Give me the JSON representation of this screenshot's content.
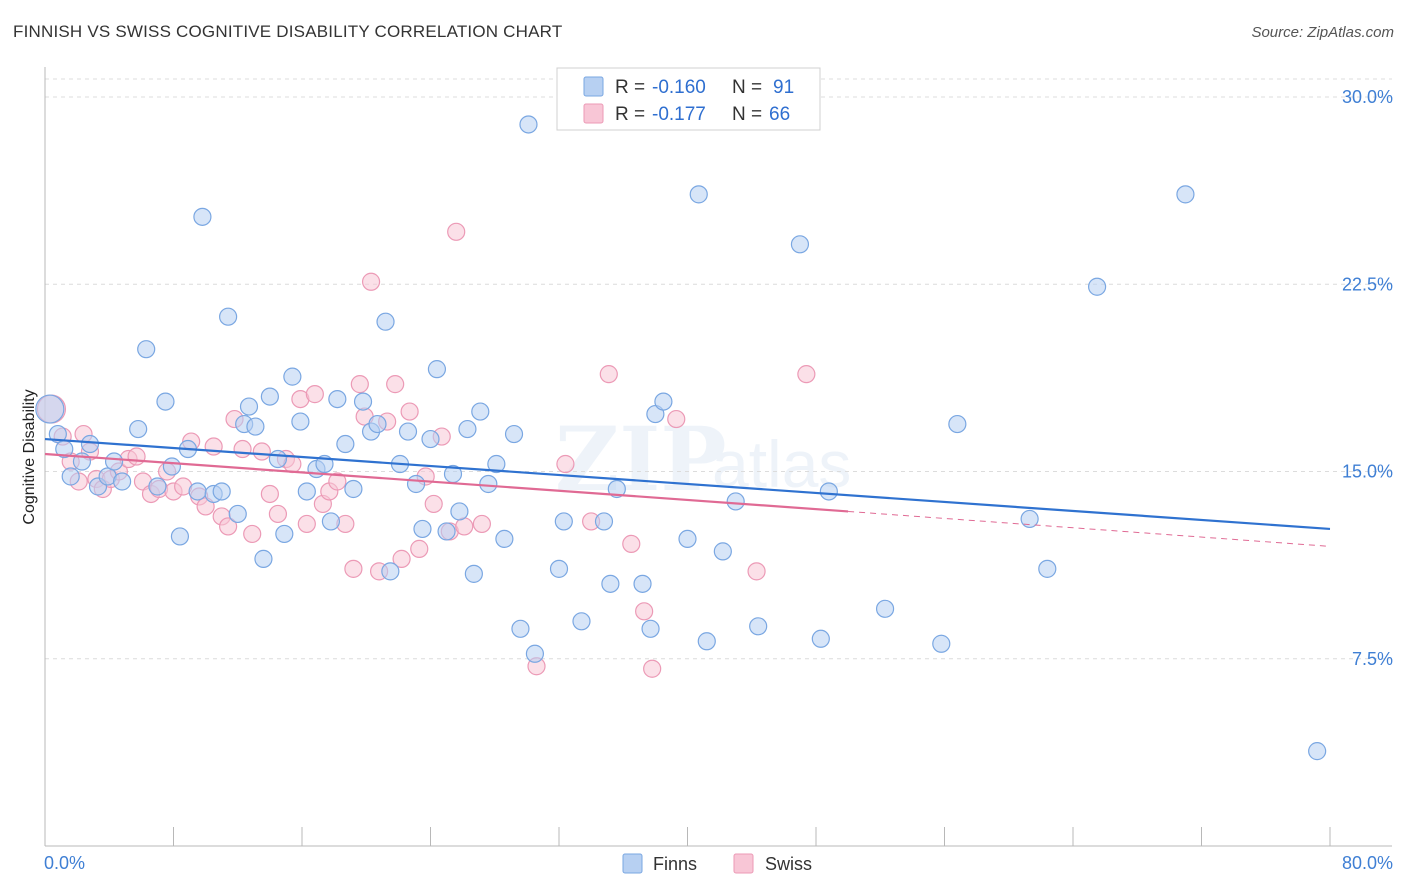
{
  "title": "FINNISH VS SWISS COGNITIVE DISABILITY CORRELATION CHART",
  "source": "Source: ZipAtlas.com",
  "watermark": {
    "zip": "ZIP",
    "atlas": "atlas"
  },
  "legend_top": {
    "r_label": "R =",
    "n_label": "N =",
    "rows": [
      {
        "r": "-0.160",
        "n": "91"
      },
      {
        "r": "-0.177",
        "n": "66"
      }
    ]
  },
  "legend_bottom": [
    "Finns",
    "Swiss"
  ],
  "colors": {
    "finns_fill": "#b7d0f2",
    "finns_stroke": "#7aa7e2",
    "finns_line": "#2f72d0",
    "swiss_fill": "#f8c6d6",
    "swiss_stroke": "#ec9ab6",
    "swiss_line": "#e06a94",
    "tick": "#3f7fd4",
    "grid": "#dcdcdc"
  },
  "chart_data": {
    "type": "scatter",
    "title": "FINNISH VS SWISS COGNITIVE DISABILITY CORRELATION CHART",
    "xlabel": "",
    "ylabel": "Cognitive Disability",
    "xlim": [
      0,
      80
    ],
    "ylim": [
      0,
      32.5
    ],
    "x_tick_labels": [
      "0.0%",
      "80.0%"
    ],
    "y_ticks": [
      7.5,
      15.0,
      22.5,
      30.0
    ],
    "y_tick_labels": [
      "7.5%",
      "15.0%",
      "22.5%",
      "30.0%"
    ],
    "grid": "horizontal dashed",
    "legend_placement": "top-center and bottom",
    "series": [
      {
        "name": "Finns",
        "r": -0.16,
        "n": 91,
        "trend": {
          "x": [
            0,
            80
          ],
          "y": [
            16.3,
            12.7
          ]
        },
        "points": [
          [
            0.3,
            17.5
          ],
          [
            0.8,
            16.5
          ],
          [
            1.2,
            15.9
          ],
          [
            1.6,
            14.8
          ],
          [
            2.3,
            15.4
          ],
          [
            2.8,
            16.1
          ],
          [
            3.3,
            14.4
          ],
          [
            3.9,
            14.8
          ],
          [
            4.3,
            15.4
          ],
          [
            4.8,
            14.6
          ],
          [
            5.8,
            16.7
          ],
          [
            6.3,
            19.9
          ],
          [
            7.0,
            14.4
          ],
          [
            7.5,
            17.8
          ],
          [
            7.9,
            15.2
          ],
          [
            8.4,
            12.4
          ],
          [
            8.9,
            15.9
          ],
          [
            9.5,
            14.2
          ],
          [
            9.8,
            25.2
          ],
          [
            10.5,
            14.1
          ],
          [
            11.0,
            14.2
          ],
          [
            11.4,
            21.2
          ],
          [
            12.0,
            13.3
          ],
          [
            12.4,
            16.9
          ],
          [
            12.7,
            17.6
          ],
          [
            13.1,
            16.8
          ],
          [
            13.6,
            11.5
          ],
          [
            14.0,
            18.0
          ],
          [
            14.5,
            15.5
          ],
          [
            14.9,
            12.5
          ],
          [
            15.4,
            18.8
          ],
          [
            15.9,
            17.0
          ],
          [
            16.3,
            14.2
          ],
          [
            16.9,
            15.1
          ],
          [
            17.4,
            15.3
          ],
          [
            17.8,
            13.0
          ],
          [
            18.2,
            17.9
          ],
          [
            18.7,
            16.1
          ],
          [
            19.2,
            14.3
          ],
          [
            19.8,
            17.8
          ],
          [
            20.3,
            16.6
          ],
          [
            20.7,
            16.9
          ],
          [
            21.2,
            21.0
          ],
          [
            21.5,
            11.0
          ],
          [
            22.1,
            15.3
          ],
          [
            22.6,
            16.6
          ],
          [
            23.1,
            14.5
          ],
          [
            23.5,
            12.7
          ],
          [
            24.0,
            16.3
          ],
          [
            24.4,
            19.1
          ],
          [
            25.0,
            12.6
          ],
          [
            25.4,
            14.9
          ],
          [
            25.8,
            13.4
          ],
          [
            26.3,
            16.7
          ],
          [
            26.7,
            10.9
          ],
          [
            27.1,
            17.4
          ],
          [
            27.6,
            14.5
          ],
          [
            28.1,
            15.3
          ],
          [
            28.6,
            12.3
          ],
          [
            29.2,
            16.5
          ],
          [
            29.6,
            8.7
          ],
          [
            30.1,
            28.9
          ],
          [
            30.5,
            7.7
          ],
          [
            32.0,
            11.1
          ],
          [
            32.3,
            13.0
          ],
          [
            33.4,
            9.0
          ],
          [
            34.8,
            13.0
          ],
          [
            35.2,
            10.5
          ],
          [
            35.6,
            14.3
          ],
          [
            37.2,
            10.5
          ],
          [
            37.7,
            8.7
          ],
          [
            38.0,
            17.3
          ],
          [
            38.5,
            17.8
          ],
          [
            40.0,
            12.3
          ],
          [
            40.7,
            26.1
          ],
          [
            41.2,
            8.2
          ],
          [
            42.2,
            11.8
          ],
          [
            43.0,
            13.8
          ],
          [
            44.4,
            8.8
          ],
          [
            45.2,
            29.7
          ],
          [
            47.0,
            24.1
          ],
          [
            48.3,
            8.3
          ],
          [
            48.8,
            14.2
          ],
          [
            52.3,
            9.5
          ],
          [
            55.8,
            8.1
          ],
          [
            56.8,
            16.9
          ],
          [
            61.3,
            13.1
          ],
          [
            62.4,
            11.1
          ],
          [
            65.5,
            22.4
          ],
          [
            71.0,
            26.1
          ],
          [
            79.2,
            3.8
          ]
        ]
      },
      {
        "name": "Swiss",
        "r": -0.177,
        "n": 66,
        "trend": {
          "x": [
            0,
            50
          ],
          "y": [
            15.7,
            13.4
          ]
        },
        "trend_extension": {
          "x": [
            50,
            80
          ],
          "y": [
            13.4,
            12.0
          ]
        },
        "points": [
          [
            0.4,
            17.5
          ],
          [
            1.1,
            16.4
          ],
          [
            1.6,
            15.4
          ],
          [
            2.1,
            14.6
          ],
          [
            2.4,
            16.5
          ],
          [
            2.8,
            15.8
          ],
          [
            3.2,
            14.7
          ],
          [
            3.6,
            14.3
          ],
          [
            4.1,
            14.7
          ],
          [
            4.6,
            15.0
          ],
          [
            5.2,
            15.5
          ],
          [
            5.7,
            15.6
          ],
          [
            6.1,
            14.6
          ],
          [
            6.6,
            14.1
          ],
          [
            7.1,
            14.3
          ],
          [
            7.6,
            15.0
          ],
          [
            8.0,
            14.2
          ],
          [
            8.6,
            14.4
          ],
          [
            9.1,
            16.2
          ],
          [
            9.6,
            14.0
          ],
          [
            10.0,
            13.6
          ],
          [
            10.5,
            16.0
          ],
          [
            11.0,
            13.2
          ],
          [
            11.4,
            12.8
          ],
          [
            11.8,
            17.1
          ],
          [
            12.3,
            15.9
          ],
          [
            12.9,
            12.5
          ],
          [
            13.5,
            15.8
          ],
          [
            14.0,
            14.1
          ],
          [
            14.5,
            13.3
          ],
          [
            15.0,
            15.5
          ],
          [
            15.4,
            15.3
          ],
          [
            15.9,
            17.9
          ],
          [
            16.3,
            12.9
          ],
          [
            16.8,
            18.1
          ],
          [
            17.3,
            13.7
          ],
          [
            17.7,
            14.2
          ],
          [
            18.2,
            14.6
          ],
          [
            18.7,
            12.9
          ],
          [
            19.2,
            11.1
          ],
          [
            19.6,
            18.5
          ],
          [
            19.9,
            17.2
          ],
          [
            20.3,
            22.6
          ],
          [
            20.8,
            11.0
          ],
          [
            21.3,
            17.0
          ],
          [
            21.8,
            18.5
          ],
          [
            22.2,
            11.5
          ],
          [
            22.7,
            17.4
          ],
          [
            23.3,
            11.9
          ],
          [
            23.7,
            14.8
          ],
          [
            24.2,
            13.7
          ],
          [
            24.7,
            16.4
          ],
          [
            25.2,
            12.6
          ],
          [
            25.6,
            24.6
          ],
          [
            26.1,
            12.8
          ],
          [
            27.2,
            12.9
          ],
          [
            30.6,
            7.2
          ],
          [
            32.4,
            15.3
          ],
          [
            34.0,
            13.0
          ],
          [
            35.1,
            18.9
          ],
          [
            36.5,
            12.1
          ],
          [
            37.3,
            9.4
          ],
          [
            37.8,
            7.1
          ],
          [
            39.3,
            17.1
          ],
          [
            44.3,
            11.0
          ],
          [
            47.4,
            18.9
          ]
        ]
      }
    ]
  }
}
